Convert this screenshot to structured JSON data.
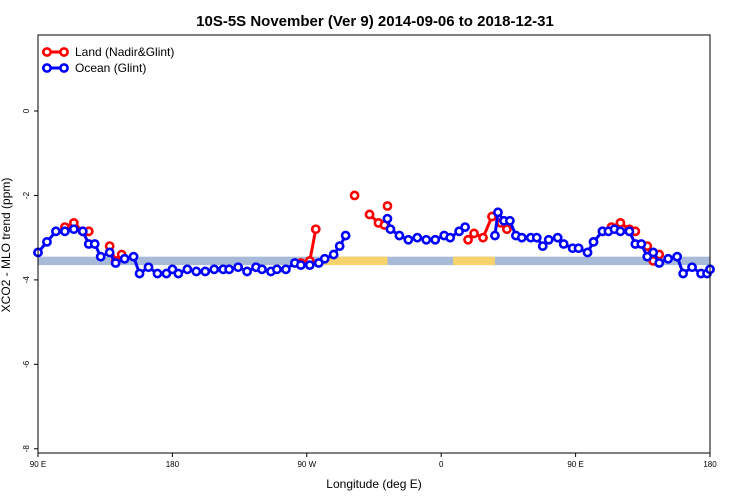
{
  "chart_data": {
    "type": "line",
    "title": "10S-5S November (Ver 9)   2014-09-06 to 2018-12-31",
    "xlabel": "Longitude (deg E)",
    "ylabel": "XCO2 - MLO trend (ppm)",
    "x_axis": {
      "unit": "deg E",
      "range_note": "from 90 E around the globe to 180 (east-positive, wraps at 180/-180)",
      "ticks": [
        {
          "label": "90 E",
          "lon": 90
        },
        {
          "label": "180",
          "lon": 180
        },
        {
          "label": "90 W",
          "lon": 270
        },
        {
          "label": "0",
          "lon": 360
        },
        {
          "label": "90 E",
          "lon": 450
        },
        {
          "label": "180",
          "lon": 540
        }
      ]
    },
    "y_axis": {
      "ylim": [
        -8.1,
        1.8
      ],
      "ticks": [
        0,
        -2,
        -4,
        -6,
        -8
      ]
    },
    "grid": false,
    "legend_position": "top-left",
    "land_mask_band": {
      "ocean_color": "#a7bad8",
      "land_color": "#f7d36b",
      "y_range": [
        -3.65,
        -3.45
      ],
      "land_segments": [
        [
          280,
          324
        ],
        [
          368,
          396
        ]
      ]
    },
    "series": [
      {
        "name": "Land (Nadir&Glint)",
        "color": "#ff0000",
        "segments": [
          [
            [
              108,
              -2.75
            ],
            [
              114,
              -2.65
            ],
            [
              120,
              -2.85
            ],
            [
              124,
              -2.85
            ]
          ],
          [
            [
              138,
              -3.2
            ],
            [
              142,
              -3.55
            ],
            [
              146,
              -3.4
            ]
          ],
          [
            [
              266,
              -3.6
            ],
            [
              272,
              -3.55
            ],
            [
              276,
              -2.8
            ]
          ],
          [
            [
              302,
              -2.0
            ]
          ],
          [
            [
              312,
              -2.45
            ],
            [
              318,
              -2.65
            ],
            [
              322,
              -2.7
            ]
          ],
          [
            [
              324,
              -2.25
            ]
          ],
          [
            [
              378,
              -3.05
            ],
            [
              382,
              -2.9
            ],
            [
              388,
              -3.0
            ],
            [
              394,
              -2.5
            ],
            [
              400,
              -2.65
            ],
            [
              404,
              -2.8
            ]
          ],
          [
            [
              468,
              -2.85
            ],
            [
              474,
              -2.75
            ],
            [
              480,
              -2.65
            ],
            [
              486,
              -2.8
            ],
            [
              490,
              -2.85
            ]
          ],
          [
            [
              498,
              -3.2
            ],
            [
              502,
              -3.55
            ],
            [
              506,
              -3.4
            ]
          ]
        ]
      },
      {
        "name": "Ocean (Glint)",
        "color": "#0000ff",
        "segments": [
          [
            [
              90,
              -3.35
            ],
            [
              96,
              -3.1
            ],
            [
              102,
              -2.85
            ],
            [
              108,
              -2.85
            ],
            [
              114,
              -2.8
            ],
            [
              120,
              -2.85
            ],
            [
              124,
              -3.15
            ],
            [
              128,
              -3.15
            ],
            [
              132,
              -3.45
            ],
            [
              138,
              -3.35
            ],
            [
              142,
              -3.6
            ],
            [
              148,
              -3.5
            ],
            [
              154,
              -3.45
            ],
            [
              158,
              -3.85
            ],
            [
              164,
              -3.7
            ],
            [
              170,
              -3.85
            ],
            [
              176,
              -3.85
            ],
            [
              180,
              -3.75
            ],
            [
              184,
              -3.85
            ],
            [
              190,
              -3.75
            ],
            [
              196,
              -3.8
            ],
            [
              202,
              -3.8
            ],
            [
              208,
              -3.75
            ],
            [
              214,
              -3.75
            ],
            [
              218,
              -3.75
            ],
            [
              224,
              -3.7
            ],
            [
              230,
              -3.8
            ],
            [
              236,
              -3.7
            ],
            [
              240,
              -3.75
            ],
            [
              246,
              -3.8
            ],
            [
              250,
              -3.75
            ],
            [
              256,
              -3.75
            ],
            [
              262,
              -3.6
            ],
            [
              266,
              -3.65
            ],
            [
              272,
              -3.65
            ],
            [
              278,
              -3.6
            ],
            [
              282,
              -3.5
            ],
            [
              288,
              -3.4
            ],
            [
              292,
              -3.2
            ],
            [
              296,
              -2.95
            ]
          ],
          [
            [
              324,
              -2.55
            ],
            [
              326,
              -2.8
            ],
            [
              332,
              -2.95
            ],
            [
              338,
              -3.05
            ],
            [
              344,
              -3.0
            ],
            [
              350,
              -3.05
            ],
            [
              356,
              -3.05
            ],
            [
              362,
              -2.95
            ],
            [
              366,
              -3.0
            ],
            [
              372,
              -2.85
            ],
            [
              376,
              -2.75
            ]
          ],
          [
            [
              396,
              -2.95
            ],
            [
              398,
              -2.4
            ],
            [
              402,
              -2.6
            ],
            [
              406,
              -2.6
            ],
            [
              410,
              -2.95
            ],
            [
              414,
              -3.0
            ],
            [
              420,
              -3.0
            ],
            [
              424,
              -3.0
            ],
            [
              428,
              -3.2
            ],
            [
              432,
              -3.05
            ],
            [
              438,
              -3.0
            ],
            [
              442,
              -3.15
            ],
            [
              448,
              -3.25
            ],
            [
              452,
              -3.25
            ],
            [
              458,
              -3.35
            ],
            [
              462,
              -3.1
            ],
            [
              468,
              -2.85
            ],
            [
              472,
              -2.85
            ],
            [
              476,
              -2.8
            ],
            [
              480,
              -2.85
            ],
            [
              486,
              -2.85
            ],
            [
              490,
              -3.15
            ],
            [
              494,
              -3.15
            ],
            [
              498,
              -3.45
            ],
            [
              502,
              -3.35
            ],
            [
              506,
              -3.6
            ],
            [
              512,
              -3.5
            ],
            [
              518,
              -3.45
            ],
            [
              522,
              -3.85
            ],
            [
              528,
              -3.7
            ],
            [
              534,
              -3.85
            ],
            [
              538,
              -3.85
            ],
            [
              540,
              -3.75
            ]
          ]
        ]
      }
    ]
  }
}
